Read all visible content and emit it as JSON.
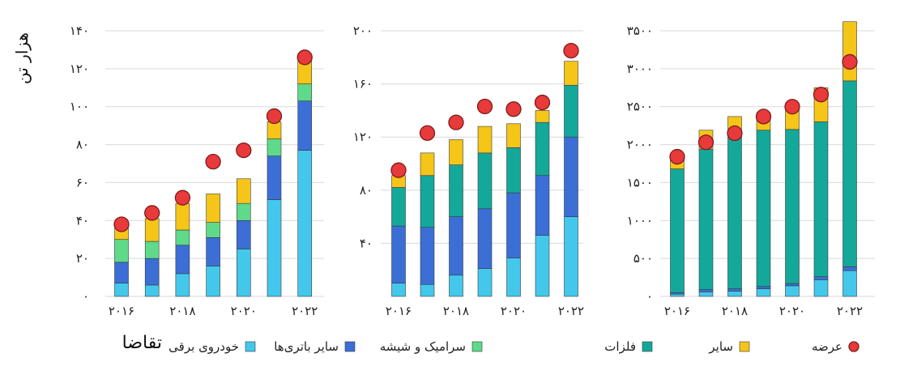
{
  "ylabel": "هزار تن",
  "demand_label": "تقاضا",
  "legend": [
    {
      "label": "عرضه",
      "kind": "dot",
      "color": "#e8393b"
    },
    {
      "label": "سایر",
      "kind": "square",
      "color": "#f5c518"
    },
    {
      "label": "فلزات",
      "kind": "square",
      "color": "#14a89b"
    },
    {
      "label": "سرامیک و شیشه",
      "kind": "square",
      "color": "#5fd98a"
    },
    {
      "label": "سایر باتری‌ها",
      "kind": "square",
      "color": "#3b6fd6"
    },
    {
      "label": "خودروی برقی",
      "kind": "square",
      "color": "#43c8ec"
    }
  ],
  "chart_data": [
    {
      "type": "bar",
      "stacked": true,
      "categories": [
        "2016",
        "2017",
        "2018",
        "2019",
        "2020",
        "2021",
        "2022"
      ],
      "x_tick_labels": [
        "۲۰۱۶",
        "",
        "۲۰۱۸",
        "",
        "۲۰۲۰",
        "",
        "۲۰۲۲"
      ],
      "ylim": [
        0,
        140
      ],
      "yticks": [
        0,
        20,
        40,
        60,
        80,
        100,
        120,
        140
      ],
      "ytick_labels": [
        "۰",
        "۲۰",
        "۴۰",
        "۶۰",
        "۸۰",
        "۱۰۰",
        "۱۲۰",
        "۱۴۰"
      ],
      "grid": true,
      "series": [
        {
          "name": "خودروی برقی",
          "color": "#43c8ec",
          "values": [
            7,
            6,
            12,
            16,
            25,
            51,
            77
          ]
        },
        {
          "name": "سایر باتری‌ها",
          "color": "#3b6fd6",
          "values": [
            11,
            14,
            15,
            15,
            15,
            23,
            26
          ]
        },
        {
          "name": "سرامیک و شیشه",
          "color": "#5fd98a",
          "values": [
            12,
            9,
            8,
            8,
            9,
            9,
            9
          ]
        },
        {
          "name": "فلزات",
          "color": "#14a89b",
          "values": [
            0,
            0,
            0,
            0,
            0,
            0,
            0
          ]
        },
        {
          "name": "سایر",
          "color": "#f5c518",
          "values": [
            6,
            12,
            14,
            15,
            13,
            9,
            12
          ]
        }
      ],
      "supply": {
        "name": "عرضه",
        "values": [
          38,
          44,
          52,
          71,
          77,
          95,
          126
        ]
      }
    },
    {
      "type": "bar",
      "stacked": true,
      "categories": [
        "2016",
        "2017",
        "2018",
        "2019",
        "2020",
        "2021",
        "2022"
      ],
      "x_tick_labels": [
        "۲۰۱۶",
        "",
        "۲۰۱۸",
        "",
        "۲۰۲۰",
        "",
        "۲۰۲۲"
      ],
      "ylim": [
        0,
        200
      ],
      "yticks": [
        40,
        80,
        120,
        160,
        200
      ],
      "ytick_labels": [
        "۴۰",
        "۸۰",
        "۱۲۰",
        "۱۶۰",
        "۲۰۰"
      ],
      "grid": true,
      "series": [
        {
          "name": "خودروی برقی",
          "color": "#43c8ec",
          "values": [
            10,
            9,
            16,
            21,
            29,
            46,
            60
          ]
        },
        {
          "name": "سایر باتری‌ها",
          "color": "#3b6fd6",
          "values": [
            43,
            43,
            44,
            45,
            49,
            45,
            60
          ]
        },
        {
          "name": "سرامیک و شیشه",
          "color": "#5fd98a",
          "values": [
            0,
            0,
            0,
            0,
            0,
            0,
            0
          ]
        },
        {
          "name": "فلزات",
          "color": "#14a89b",
          "values": [
            29,
            39,
            39,
            42,
            34,
            40,
            39
          ]
        },
        {
          "name": "سایر",
          "color": "#f5c518",
          "values": [
            9,
            17,
            19,
            20,
            18,
            9,
            18
          ]
        }
      ],
      "supply": {
        "name": "عرضه",
        "values": [
          95,
          123,
          131,
          143,
          141,
          146,
          185
        ]
      }
    },
    {
      "type": "bar",
      "stacked": true,
      "categories": [
        "2016",
        "2017",
        "2018",
        "2019",
        "2020",
        "2021",
        "2022"
      ],
      "x_tick_labels": [
        "۲۰۱۶",
        "",
        "۲۰۱۸",
        "",
        "۲۰۲۰",
        "",
        "۲۰۲۲"
      ],
      "ylim": [
        0,
        3500
      ],
      "yticks": [
        0,
        500,
        1000,
        1500,
        2000,
        2500,
        3000,
        3500
      ],
      "ytick_labels": [
        "۰",
        "۵۰۰",
        "۱۰۰۰",
        "۱۵۰۰",
        "۲۰۰۰",
        "۲۵۰۰",
        "۳۰۰۰",
        "۳۵۰۰"
      ],
      "grid": true,
      "series": [
        {
          "name": "خودروی برقی",
          "color": "#43c8ec",
          "values": [
            30,
            60,
            70,
            100,
            140,
            220,
            340
          ]
        },
        {
          "name": "سایر باتری‌ها",
          "color": "#3b6fd6",
          "values": [
            20,
            30,
            30,
            30,
            30,
            40,
            50
          ]
        },
        {
          "name": "سرامیک و شیشه",
          "color": "#5fd98a",
          "values": [
            0,
            0,
            0,
            0,
            0,
            0,
            0
          ]
        },
        {
          "name": "فلزات",
          "color": "#14a89b",
          "values": [
            1630,
            1850,
            2000,
            2060,
            2030,
            2040,
            2450
          ]
        },
        {
          "name": "سایر",
          "color": "#f5c518",
          "values": [
            170,
            250,
            270,
            230,
            340,
            450,
            780
          ]
        }
      ],
      "supply": {
        "name": "عرضه",
        "values": [
          1840,
          2030,
          2150,
          2370,
          2500,
          2660,
          3090
        ]
      }
    }
  ]
}
